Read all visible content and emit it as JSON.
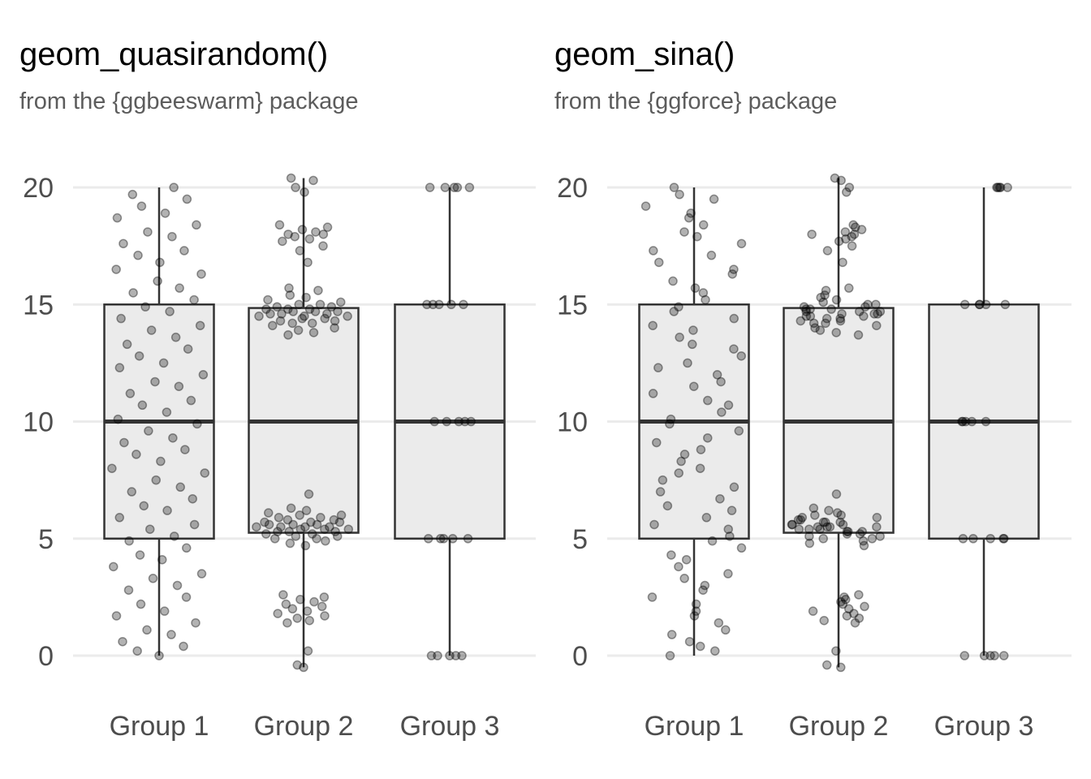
{
  "chart_data": [
    {
      "type": "boxplot",
      "title": "geom_quasirandom()",
      "subtitle": "from the {ggbeeswarm} package",
      "xlabel": "",
      "ylabel": "",
      "ylim": [
        -0.8,
        20.6
      ],
      "yticks": [
        0,
        5,
        10,
        15,
        20
      ],
      "categories": [
        "Group 1",
        "Group 2",
        "Group 3"
      ],
      "grid": "horizontal",
      "boxes": [
        {
          "min": 0,
          "q1": 5,
          "median": 10,
          "q3": 15,
          "max": 20
        },
        {
          "min": -0.5,
          "q1": 5.25,
          "median": 10,
          "q3": 14.85,
          "max": 20.4
        },
        {
          "min": 0,
          "q1": 5,
          "median": 10,
          "q3": 15,
          "max": 20
        }
      ],
      "points_style": "quasirandom"
    },
    {
      "type": "boxplot",
      "title": "geom_sina()",
      "subtitle": "from the {ggforce} package",
      "xlabel": "",
      "ylabel": "",
      "ylim": [
        -0.8,
        20.6
      ],
      "yticks": [
        0,
        5,
        10,
        15,
        20
      ],
      "categories": [
        "Group 1",
        "Group 2",
        "Group 3"
      ],
      "grid": "horizontal",
      "boxes": [
        {
          "min": 0,
          "q1": 5,
          "median": 10,
          "q3": 15,
          "max": 20
        },
        {
          "min": -0.5,
          "q1": 5.25,
          "median": 10,
          "q3": 14.85,
          "max": 20.4
        },
        {
          "min": 0,
          "q1": 5,
          "median": 10,
          "q3": 15,
          "max": 20
        }
      ],
      "points_style": "sina"
    }
  ],
  "points": [
    [
      0,
      0.2,
      0.4,
      0.6,
      0.9,
      1.1,
      1.4,
      1.7,
      1.9,
      2.2,
      2.5,
      2.8,
      3.0,
      3.3,
      3.5,
      3.8,
      4.1,
      4.3,
      4.6,
      4.9,
      5.1,
      5.4,
      5.6,
      5.9,
      6.2,
      6.4,
      6.7,
      7.0,
      7.2,
      7.5,
      7.8,
      8.0,
      8.3,
      8.6,
      8.8,
      9.1,
      9.3,
      9.6,
      9.9,
      10.1,
      10.4,
      10.7,
      10.9,
      11.2,
      11.5,
      11.7,
      12.0,
      12.3,
      12.5,
      12.8,
      13.1,
      13.3,
      13.6,
      13.9,
      14.1,
      14.4,
      14.7,
      14.9,
      15.2,
      15.5,
      15.7,
      16.0,
      16.3,
      16.5,
      16.8,
      17.1,
      17.3,
      17.6,
      17.9,
      18.1,
      18.4,
      18.7,
      18.9,
      19.2,
      19.5,
      19.7,
      20.0
    ],
    [
      -0.5,
      -0.4,
      0.2,
      1.4,
      1.5,
      1.6,
      1.7,
      1.8,
      1.9,
      2.0,
      2.1,
      2.2,
      2.3,
      2.4,
      2.5,
      2.6,
      4.7,
      4.8,
      4.9,
      5.0,
      5.0,
      5.1,
      5.1,
      5.2,
      5.2,
      5.3,
      5.3,
      5.3,
      5.4,
      5.4,
      5.4,
      5.5,
      5.5,
      5.5,
      5.5,
      5.6,
      5.6,
      5.6,
      5.7,
      5.7,
      5.7,
      5.8,
      5.8,
      5.9,
      5.9,
      6.0,
      6.0,
      6.1,
      6.2,
      6.3,
      6.9,
      13.7,
      13.8,
      13.9,
      14.0,
      14.1,
      14.2,
      14.2,
      14.3,
      14.3,
      14.4,
      14.4,
      14.5,
      14.5,
      14.5,
      14.6,
      14.6,
      14.6,
      14.7,
      14.7,
      14.7,
      14.8,
      14.8,
      14.8,
      14.9,
      14.9,
      15.0,
      15.0,
      15.1,
      15.2,
      15.3,
      15.4,
      15.6,
      15.7,
      16.8,
      17.3,
      17.5,
      17.7,
      17.8,
      17.9,
      18.0,
      18.0,
      18.1,
      18.2,
      18.3,
      18.4,
      19.8,
      20.0,
      20.3,
      20.4
    ],
    [
      0,
      0,
      0,
      0,
      0,
      5,
      5,
      5,
      5,
      5,
      10,
      10,
      10,
      10,
      10,
      15,
      15,
      15,
      15,
      15,
      20,
      20,
      20,
      20,
      20
    ]
  ]
}
